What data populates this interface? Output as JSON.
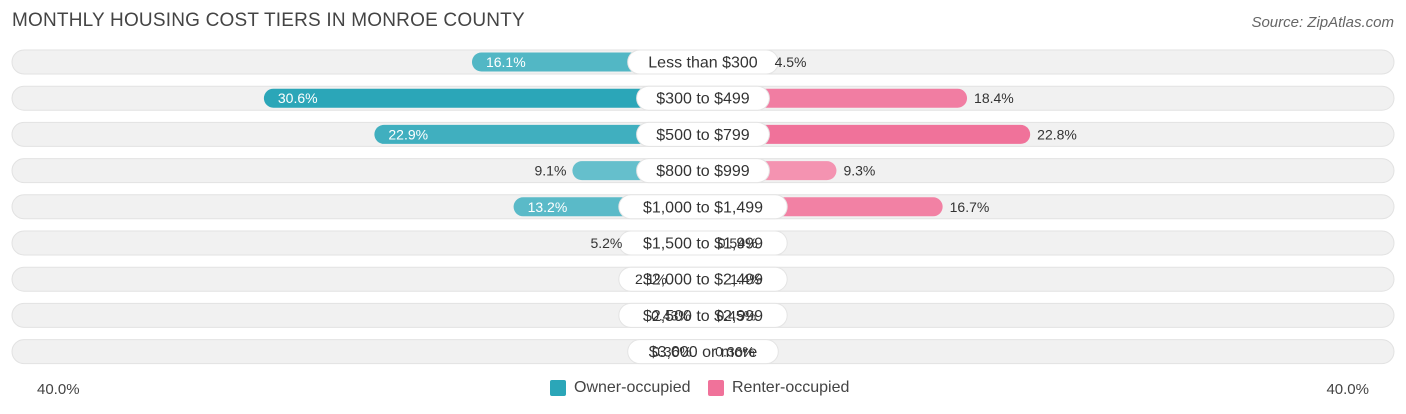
{
  "chart_data": {
    "type": "bar",
    "orientation": "diverging-horizontal",
    "title": "MONTHLY HOUSING COST TIERS IN MONROE COUNTY",
    "source": "Source: ZipAtlas.com",
    "categories": [
      "Less than $300",
      "$300 to $499",
      "$500 to $799",
      "$800 to $999",
      "$1,000 to $1,499",
      "$1,500 to $1,999",
      "$2,000 to $2,499",
      "$2,500 to $2,999",
      "$3,000 or more"
    ],
    "series": [
      {
        "name": "Owner-occupied",
        "values": [
          16.1,
          30.6,
          22.9,
          9.1,
          13.2,
          5.2,
          2.1,
          0.43,
          0.36
        ],
        "labels": [
          "16.1%",
          "30.6%",
          "22.9%",
          "9.1%",
          "13.2%",
          "5.2%",
          "2.1%",
          "0.43%",
          "0.36%"
        ]
      },
      {
        "name": "Renter-occupied",
        "values": [
          4.5,
          18.4,
          22.8,
          9.3,
          16.7,
          0.54,
          1.4,
          0.45,
          0.36
        ],
        "labels": [
          "4.5%",
          "18.4%",
          "22.8%",
          "9.3%",
          "16.7%",
          "0.54%",
          "1.4%",
          "0.45%",
          "0.36%"
        ]
      }
    ],
    "axis_min_label": "40.0%",
    "axis_max_label": "40.0%",
    "xlim": [
      -40,
      40
    ],
    "colors": {
      "owner": "#2ba6b8",
      "owner_light": "#7ecad4",
      "renter": "#f0729a",
      "renter_light": "#f6a9c1",
      "track": "#f1f1f1"
    }
  }
}
